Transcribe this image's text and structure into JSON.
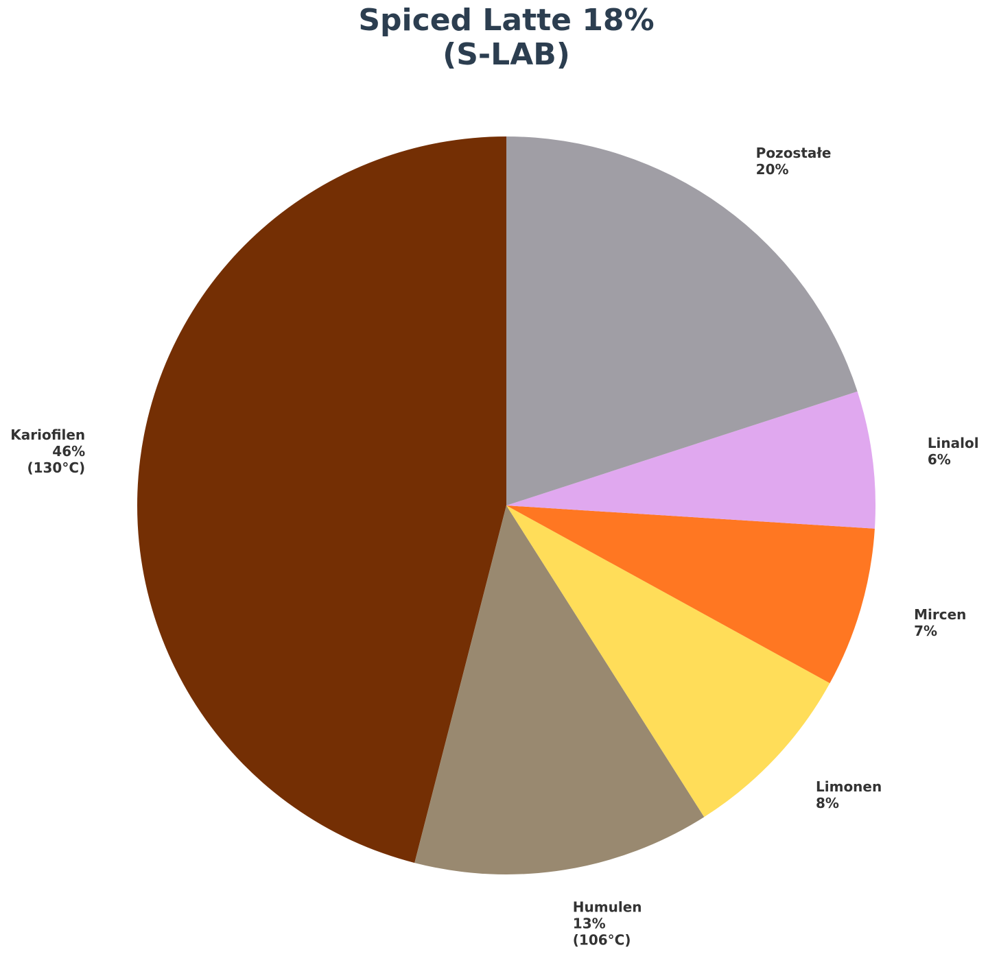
{
  "chart_data": {
    "type": "pie",
    "title": "Spiced Latte 18%",
    "subtitle": "(S-LAB)",
    "categories": [
      "Kariofilen",
      "Humulen",
      "Limonen",
      "Mircen",
      "Linalol",
      "Pozostałe"
    ],
    "values": [
      46,
      13,
      8,
      7,
      6,
      20
    ],
    "value_labels": [
      "46%",
      "13%",
      "8%",
      "7%",
      "6%",
      "20%"
    ],
    "notes": [
      "(130°C)",
      "(106°C)",
      null,
      null,
      null,
      null
    ],
    "colors": [
      "#742f04",
      "#998970",
      "#ffdd59",
      "#ff7722",
      "#e0a8ef",
      "#a09ea5"
    ],
    "start_angle": 90,
    "direction": "counterclockwise"
  }
}
